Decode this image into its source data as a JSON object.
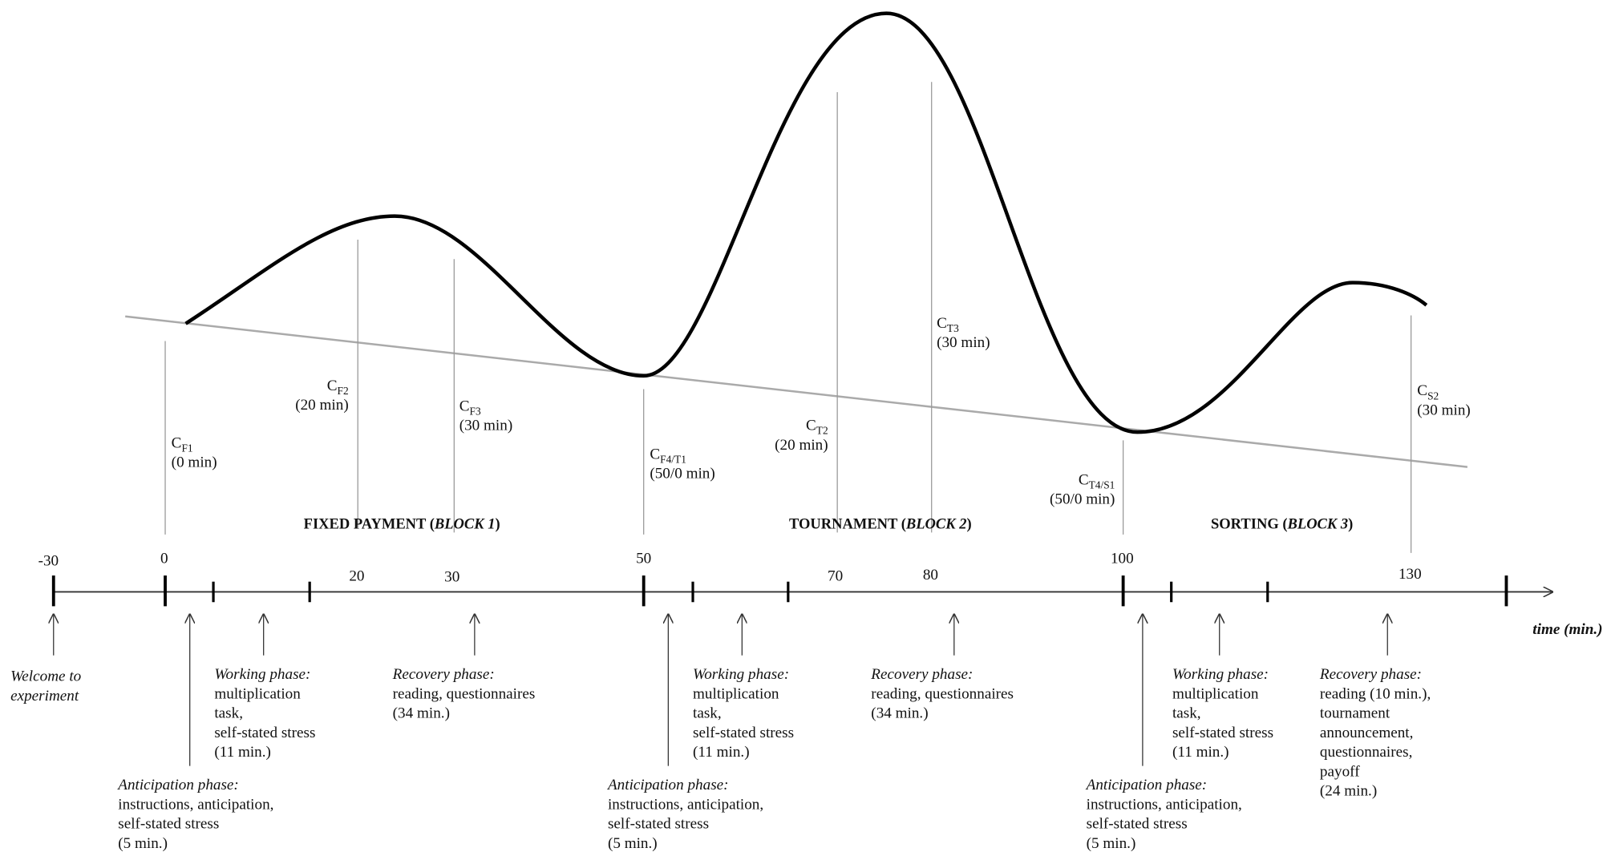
{
  "axis": {
    "label": "time (min.)",
    "ticks": [
      "-30",
      "0",
      "20",
      "30",
      "50",
      "70",
      "80",
      "100",
      "130"
    ]
  },
  "samples": [
    {
      "symbol": "C",
      "sub": "F1",
      "time": "(0 min)"
    },
    {
      "symbol": "C",
      "sub": "F2",
      "time": "(20 min)"
    },
    {
      "symbol": "C",
      "sub": "F3",
      "time": "(30 min)"
    },
    {
      "symbol": "C",
      "sub": "F4/T1",
      "time": "(50/0 min)"
    },
    {
      "symbol": "C",
      "sub": "T2",
      "time": "(20 min)"
    },
    {
      "symbol": "C",
      "sub": "T3",
      "time": "(30 min)"
    },
    {
      "symbol": "C",
      "sub": "T4/S1",
      "time": "(50/0 min)"
    },
    {
      "symbol": "C",
      "sub": "S2",
      "time": "(30 min)"
    }
  ],
  "blocks": [
    {
      "name": "FIXED PAYMENT (",
      "block": "BLOCK 1",
      "close": ")"
    },
    {
      "name": "TOURNAMENT (",
      "block": "BLOCK 2",
      "close": ")"
    },
    {
      "name": "SORTING (",
      "block": "BLOCK 3",
      "close": ")"
    }
  ],
  "phases": [
    {
      "title": [
        "Welcome to",
        "experiment"
      ]
    },
    {
      "title": [
        "Anticipation phase:"
      ],
      "lines": [
        "instructions, anticipation,",
        "self-stated stress",
        "(5 min.)"
      ]
    },
    {
      "title": [
        "Working phase:"
      ],
      "lines": [
        "multiplication",
        "task,",
        "self-stated stress",
        "(11 min.)"
      ]
    },
    {
      "title": [
        "Recovery phase:"
      ],
      "lines": [
        "reading, questionnaires",
        "(34 min.)"
      ]
    },
    {
      "title": [
        "Anticipation phase:"
      ],
      "lines": [
        "instructions, anticipation,",
        "self-stated stress",
        "(5 min.)"
      ]
    },
    {
      "title": [
        "Working phase:"
      ],
      "lines": [
        "multiplication",
        "task,",
        "self-stated stress",
        "(11 min.)"
      ]
    },
    {
      "title": [
        "Recovery phase:"
      ],
      "lines": [
        "reading, questionnaires",
        "(34 min.)"
      ]
    },
    {
      "title": [
        "Anticipation phase:"
      ],
      "lines": [
        "instructions, anticipation,",
        "self-stated stress",
        "(5 min.)"
      ]
    },
    {
      "title": [
        "Working phase:"
      ],
      "lines": [
        "multiplication",
        "task,",
        "self-stated stress",
        "(11 min.)"
      ]
    },
    {
      "title": [
        "Recovery phase:"
      ],
      "lines": [
        "reading (10 min.),",
        "tournament",
        "announcement,",
        "questionnaires,",
        "payoff",
        "(24 min.)"
      ]
    }
  ]
}
